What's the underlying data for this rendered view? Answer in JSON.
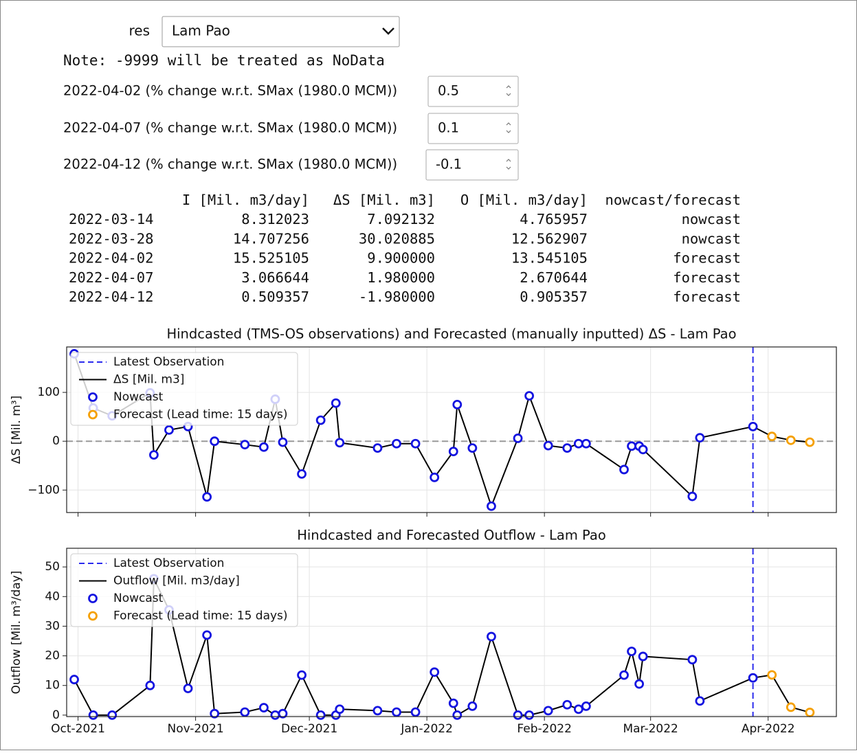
{
  "widgets": {
    "dropdown": {
      "label": "res",
      "value": "Lam Pao"
    },
    "note": "Note: -9999 will be treated as NoData",
    "inputs": [
      {
        "label": "2022-04-02 (% change w.r.t. SMax (1980.0 MCM))",
        "value": "0.5"
      },
      {
        "label": "2022-04-07 (% change w.r.t. SMax (1980.0 MCM))",
        "value": "0.1"
      },
      {
        "label": "2022-04-12 (% change w.r.t. SMax (1980.0 MCM))",
        "value": "-0.1"
      }
    ]
  },
  "table": {
    "columns": [
      "I [Mil. m3/day]",
      "ΔS [Mil. m3]",
      "O [Mil. m3/day]",
      "nowcast/forecast"
    ],
    "rows": [
      [
        "2022-03-14",
        "8.312023",
        "7.092132",
        "4.765957",
        "nowcast"
      ],
      [
        "2022-03-28",
        "14.707256",
        "30.020885",
        "12.562907",
        "nowcast"
      ],
      [
        "2022-04-02",
        "15.525105",
        "9.900000",
        "13.545105",
        "forecast"
      ],
      [
        "2022-04-07",
        "3.066644",
        "1.980000",
        "2.670644",
        "forecast"
      ],
      [
        "2022-04-12",
        "0.509357",
        "-1.980000",
        "0.905357",
        "forecast"
      ]
    ]
  },
  "chart_data": [
    {
      "type": "line",
      "title": "Hindcasted (TMS-OS observations) and Forecasted (manually inputted) ΔS - Lam Pao",
      "ylabel": "ΔS [Mil. m³]",
      "xlim": [
        -3,
        200
      ],
      "ylim": [
        -146,
        193
      ],
      "xticks": [
        0,
        31,
        61,
        92,
        123,
        151,
        182
      ],
      "yticks": [
        {
          "value": -100,
          "label": "−100"
        },
        0,
        100
      ],
      "grid": true,
      "legend": "upper left",
      "hline": {
        "y": 0,
        "color": "#999999"
      },
      "vline": {
        "name": "Latest Observation",
        "x": 178,
        "color": "#2a2aee"
      },
      "series": [
        {
          "name": "ΔS [Mil. m3]",
          "color": "#000000",
          "style": "line",
          "x": [
            -1,
            4,
            9,
            19,
            20,
            24,
            29,
            34,
            36,
            44,
            49,
            52,
            54,
            59,
            64,
            68,
            69,
            79,
            84,
            89,
            94,
            99,
            100,
            104,
            109,
            116,
            119,
            124,
            129,
            132,
            134,
            144,
            146,
            148,
            149,
            162,
            164,
            178,
            183,
            188,
            193
          ],
          "values": [
            179,
            68,
            52,
            99,
            -28,
            23,
            30,
            -114,
            0,
            -7,
            -12,
            86,
            -2,
            -67,
            43,
            78,
            -3,
            -14,
            -5,
            -5,
            -74,
            -21,
            75,
            -14,
            -133,
            6,
            93,
            -9,
            -14,
            -5,
            -5,
            -58,
            -10,
            -10,
            -17,
            -113,
            7.09,
            30.02,
            9.9,
            1.98,
            -1.98
          ]
        },
        {
          "name": "Nowcast",
          "color": "#1414e0",
          "style": "marker",
          "x": [
            -1,
            4,
            9,
            19,
            20,
            24,
            29,
            34,
            36,
            44,
            49,
            52,
            54,
            59,
            64,
            68,
            69,
            79,
            84,
            89,
            94,
            99,
            100,
            104,
            109,
            116,
            119,
            124,
            129,
            132,
            134,
            144,
            146,
            148,
            149,
            162,
            164,
            178
          ],
          "values": [
            179,
            68,
            52,
            99,
            -28,
            23,
            30,
            -114,
            0,
            -7,
            -12,
            86,
            -2,
            -67,
            43,
            78,
            -3,
            -14,
            -5,
            -5,
            -74,
            -21,
            75,
            -14,
            -133,
            6,
            93,
            -9,
            -14,
            -5,
            -5,
            -58,
            -10,
            -10,
            -17,
            -113,
            7.09,
            30.02
          ]
        },
        {
          "name": "Forecast (Lead time: 15 days)",
          "color": "#f5a000",
          "style": "marker",
          "x": [
            183,
            188,
            193
          ],
          "values": [
            9.9,
            1.98,
            -1.98
          ]
        }
      ]
    },
    {
      "type": "line",
      "title": "Hindcasted and Forecasted Outflow - Lam Pao",
      "ylabel": "Outflow [Mil. m³/day]",
      "xlim": [
        -3,
        200
      ],
      "ylim": [
        -0.5,
        56.3
      ],
      "xticks": [
        {
          "value": 0,
          "label": "Oct-2021"
        },
        {
          "value": 31,
          "label": "Nov-2021"
        },
        {
          "value": 61,
          "label": "Dec-2021"
        },
        {
          "value": 92,
          "label": "Jan-2022"
        },
        {
          "value": 123,
          "label": "Feb-2022"
        },
        {
          "value": 151,
          "label": "Mar-2022"
        },
        {
          "value": 182,
          "label": "Apr-2022"
        }
      ],
      "yticks": [
        0,
        10,
        20,
        30,
        40,
        50
      ],
      "grid": true,
      "legend": "upper left",
      "vline": {
        "name": "Latest Observation",
        "x": 178,
        "color": "#2a2aee"
      },
      "series": [
        {
          "name": "Outflow [Mil. m3/day]",
          "color": "#000000",
          "style": "line",
          "x": [
            -1,
            4,
            9,
            19,
            20,
            24,
            29,
            34,
            36,
            44,
            49,
            52,
            54,
            59,
            64,
            68,
            69,
            79,
            84,
            89,
            94,
            99,
            100,
            104,
            109,
            116,
            119,
            124,
            129,
            132,
            134,
            144,
            146,
            148,
            149,
            162,
            164,
            178,
            183,
            188,
            193
          ],
          "values": [
            12,
            0,
            0,
            10,
            46,
            35.5,
            9,
            27,
            0.5,
            1,
            2.5,
            0,
            0.5,
            13.5,
            0,
            0,
            2,
            1.5,
            1,
            1,
            14.5,
            4,
            0,
            3,
            26.5,
            0,
            0,
            1.5,
            3.5,
            2,
            3,
            13.5,
            21.5,
            10.5,
            19.8,
            18.7,
            4.77,
            12.56,
            13.55,
            2.67,
            0.91
          ]
        },
        {
          "name": "Nowcast",
          "color": "#1414e0",
          "style": "marker",
          "x": [
            -1,
            4,
            9,
            19,
            20,
            24,
            29,
            34,
            36,
            44,
            49,
            52,
            54,
            59,
            64,
            68,
            69,
            79,
            84,
            89,
            94,
            99,
            100,
            104,
            109,
            116,
            119,
            124,
            129,
            132,
            134,
            144,
            146,
            148,
            149,
            162,
            164,
            178
          ],
          "values": [
            12,
            0,
            0,
            10,
            46,
            35.5,
            9,
            27,
            0.5,
            1,
            2.5,
            0,
            0.5,
            13.5,
            0,
            0,
            2,
            1.5,
            1,
            1,
            14.5,
            4,
            0,
            3,
            26.5,
            0,
            0,
            1.5,
            3.5,
            2,
            3,
            13.5,
            21.5,
            10.5,
            19.8,
            18.7,
            4.77,
            12.56
          ]
        },
        {
          "name": "Forecast (Lead time: 15 days)",
          "color": "#f5a000",
          "style": "marker",
          "x": [
            183,
            188,
            193
          ],
          "values": [
            13.55,
            2.67,
            0.91
          ]
        }
      ]
    }
  ]
}
